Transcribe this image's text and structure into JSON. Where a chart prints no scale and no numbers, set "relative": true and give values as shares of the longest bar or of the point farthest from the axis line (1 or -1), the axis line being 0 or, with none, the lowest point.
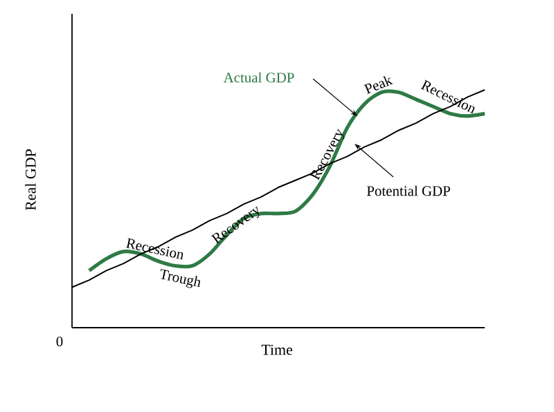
{
  "chart_data": {
    "type": "line",
    "relative": true,
    "xlabel": "Time",
    "ylabel": "Real GDP",
    "categories": [
      null,
      null,
      null,
      null,
      null,
      null,
      null,
      null,
      null,
      null,
      null,
      null,
      null,
      null,
      null,
      null,
      null,
      null,
      null,
      null,
      null,
      null,
      null,
      null,
      null
    ],
    "series": [
      {
        "name": "Actual GDP",
        "color": "#2f7a45",
        "values": [
          null,
          0.24,
          0.29,
          0.32,
          0.31,
          0.28,
          0.26,
          0.26,
          0.31,
          0.39,
          0.46,
          0.48,
          0.48,
          0.49,
          0.56,
          0.68,
          0.84,
          0.94,
          0.99,
          0.99,
          0.96,
          0.93,
          0.9,
          0.89,
          0.9
        ]
      },
      {
        "name": "Potential GDP",
        "color": "#000000",
        "values": [
          0.17,
          0.2,
          0.24,
          0.27,
          0.31,
          0.34,
          0.38,
          0.41,
          0.45,
          0.48,
          0.52,
          0.55,
          0.59,
          0.62,
          0.65,
          0.69,
          0.72,
          0.76,
          0.79,
          0.83,
          0.86,
          0.9,
          0.93,
          0.97,
          1.0
        ]
      }
    ],
    "annotations": [
      "Recession",
      "Trough",
      "Recovery",
      "Recovery",
      "Peak",
      "Recession",
      "0"
    ]
  }
}
